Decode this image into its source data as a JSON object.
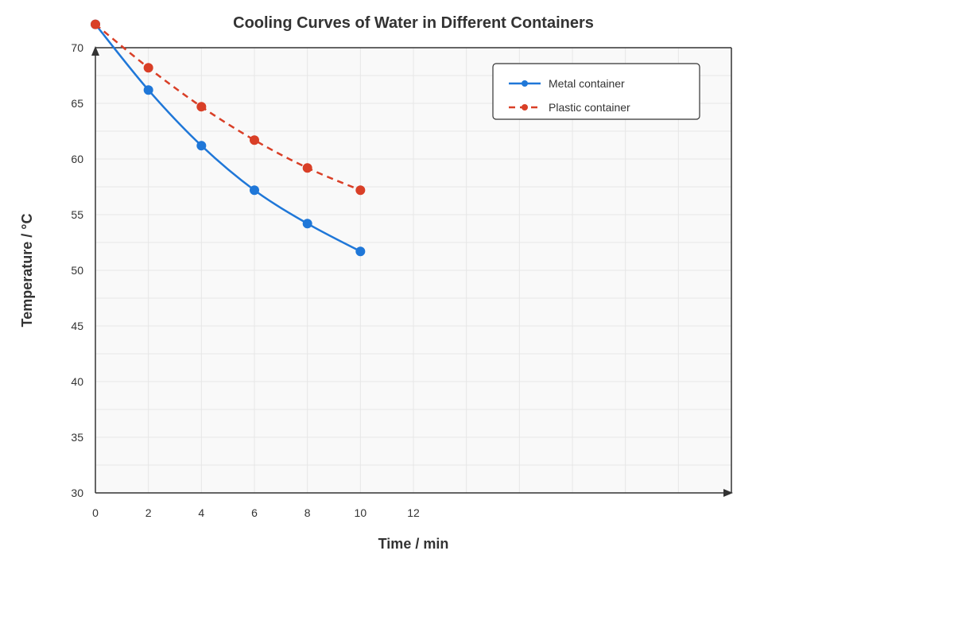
{
  "chart_data": {
    "type": "line",
    "title": "Cooling Curves of Water in Different Containers",
    "xlabel": "Time / min",
    "ylabel": "Temperature / °C",
    "xlim": [
      0,
      24
    ],
    "ylim": [
      30,
      70
    ],
    "x_ticks": [
      0,
      2,
      4,
      6,
      8,
      10,
      12
    ],
    "y_ticks": [
      30,
      35,
      40,
      45,
      50,
      55,
      60,
      65,
      70
    ],
    "grid": true,
    "legend_position": "top-right",
    "series": [
      {
        "name": "Metal container",
        "color": "#1f77d8",
        "line_style": "solid",
        "smooth": true,
        "x": [
          0,
          2,
          4,
          6,
          8,
          10
        ],
        "values": [
          72.1,
          66.2,
          61.2,
          57.2,
          54.2,
          51.7
        ]
      },
      {
        "name": "Plastic container",
        "color": "#d93f27",
        "line_style": "dashed",
        "smooth": true,
        "x": [
          0,
          2,
          4,
          6,
          8,
          10
        ],
        "values": [
          72.1,
          68.2,
          64.7,
          61.7,
          59.2,
          57.2
        ]
      }
    ]
  }
}
